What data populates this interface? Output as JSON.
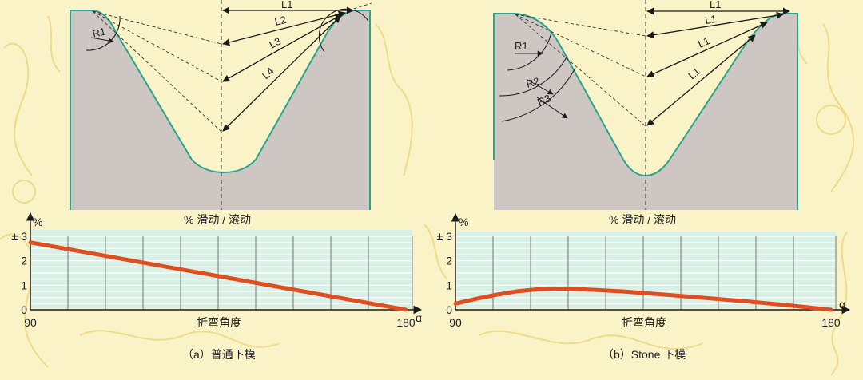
{
  "panels": [
    {
      "id": "a",
      "die_labels": [
        "L1",
        "L2",
        "L3",
        "L4",
        "R1"
      ],
      "chart_caption": "% 滑动 / 滚动",
      "caption": "（a）普通下模",
      "chart_data": {
        "type": "line",
        "title": "",
        "ylabel": "%",
        "xlabel": "折弯角度",
        "x_axis_symbol": "α",
        "y_ticks": [
          "0",
          "1",
          "2",
          "± 3"
        ],
        "x_ticks": [
          "90",
          "180"
        ],
        "xlim": [
          90,
          180
        ],
        "ylim": [
          0,
          3
        ],
        "series": [
          {
            "x": [
              90,
              180
            ],
            "y": [
              2.75,
              0.0
            ]
          }
        ]
      }
    },
    {
      "id": "b",
      "die_labels": [
        "L1",
        "L1",
        "L1",
        "L1",
        "R1",
        "R2",
        "R3"
      ],
      "chart_caption": "% 滑动 / 滚动",
      "caption": "（b）Stone 下模",
      "chart_data": {
        "type": "line",
        "title": "",
        "ylabel": "%",
        "xlabel": "折弯角度",
        "x_axis_symbol": "α",
        "y_ticks": [
          "0",
          "1",
          "2",
          "± 3"
        ],
        "x_ticks": [
          "90",
          "180"
        ],
        "xlim": [
          90,
          180
        ],
        "ylim": [
          0,
          3
        ],
        "series": [
          {
            "x": [
              90,
              95,
              100,
              105,
              110,
              115,
              120,
              130,
              140,
              150,
              160,
              170,
              180
            ],
            "y": [
              0.25,
              0.45,
              0.62,
              0.76,
              0.84,
              0.86,
              0.84,
              0.75,
              0.62,
              0.48,
              0.34,
              0.18,
              0.0
            ]
          }
        ]
      }
    }
  ],
  "colors": {
    "background": "#fbf3c8",
    "sketch": "#e9d67a",
    "die_fill": "#cdc6c2",
    "die_edge": "#2aa58d",
    "chart_fill": "#d9f0e6",
    "curve": "#e04d1f",
    "axis": "#1a1a1a"
  }
}
